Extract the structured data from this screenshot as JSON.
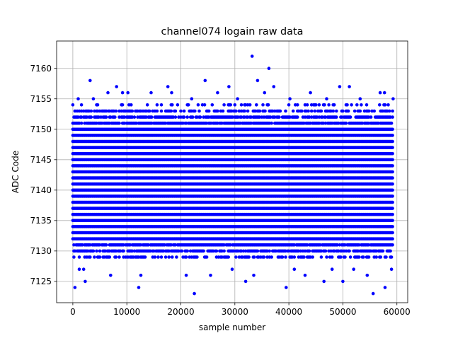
{
  "chart_data": {
    "type": "scatter",
    "title": "channel074 logain raw data",
    "xlabel": "sample number",
    "ylabel": "ADC Code",
    "xlim": [
      -3000,
      62000
    ],
    "ylim": [
      7121.5,
      7164.5
    ],
    "xticks": [
      0,
      10000,
      20000,
      30000,
      40000,
      50000,
      60000
    ],
    "xtick_labels": [
      "0",
      "10000",
      "20000",
      "30000",
      "40000",
      "50000",
      "60000"
    ],
    "yticks": [
      7125,
      7130,
      7135,
      7140,
      7145,
      7150,
      7155,
      7160
    ],
    "ytick_labels": [
      "7125",
      "7130",
      "7135",
      "7140",
      "7145",
      "7150",
      "7155",
      "7160"
    ],
    "grid": true,
    "marker_color": "#0000ff",
    "x_range": [
      0,
      59200
    ],
    "dense_bands": [
      {
        "y": 7129,
        "density": 0.45
      },
      {
        "y": 7130,
        "density": 0.75
      },
      {
        "y": 7131,
        "density": 0.9
      },
      {
        "y": 7132,
        "density": 1.0
      },
      {
        "y": 7133,
        "density": 1.0
      },
      {
        "y": 7134,
        "density": 1.0
      },
      {
        "y": 7135,
        "density": 1.0
      },
      {
        "y": 7136,
        "density": 1.0
      },
      {
        "y": 7137,
        "density": 1.0
      },
      {
        "y": 7138,
        "density": 1.0
      },
      {
        "y": 7139,
        "density": 1.0
      },
      {
        "y": 7140,
        "density": 1.0
      },
      {
        "y": 7141,
        "density": 1.0
      },
      {
        "y": 7142,
        "density": 1.0
      },
      {
        "y": 7143,
        "density": 1.0
      },
      {
        "y": 7144,
        "density": 1.0
      },
      {
        "y": 7145,
        "density": 1.0
      },
      {
        "y": 7146,
        "density": 1.0
      },
      {
        "y": 7147,
        "density": 1.0
      },
      {
        "y": 7148,
        "density": 1.0
      },
      {
        "y": 7149,
        "density": 1.0
      },
      {
        "y": 7150,
        "density": 1.0
      },
      {
        "y": 7151,
        "density": 0.9
      },
      {
        "y": 7152,
        "density": 0.75
      },
      {
        "y": 7153,
        "density": 0.45
      },
      {
        "y": 7154,
        "density": 0.2
      }
    ],
    "outliers": [
      {
        "x": 400,
        "y": 7124
      },
      {
        "x": 2300,
        "y": 7125
      },
      {
        "x": 12200,
        "y": 7124
      },
      {
        "x": 22500,
        "y": 7123
      },
      {
        "x": 32000,
        "y": 7125
      },
      {
        "x": 39500,
        "y": 7124
      },
      {
        "x": 46500,
        "y": 7125
      },
      {
        "x": 50000,
        "y": 7125
      },
      {
        "x": 55600,
        "y": 7123
      },
      {
        "x": 57800,
        "y": 7124
      },
      {
        "x": 1200,
        "y": 7127
      },
      {
        "x": 2000,
        "y": 7127
      },
      {
        "x": 7000,
        "y": 7126
      },
      {
        "x": 12600,
        "y": 7126
      },
      {
        "x": 21000,
        "y": 7126
      },
      {
        "x": 25500,
        "y": 7126
      },
      {
        "x": 29500,
        "y": 7127
      },
      {
        "x": 33500,
        "y": 7126
      },
      {
        "x": 41000,
        "y": 7127
      },
      {
        "x": 43000,
        "y": 7126
      },
      {
        "x": 48000,
        "y": 7127
      },
      {
        "x": 52000,
        "y": 7127
      },
      {
        "x": 54500,
        "y": 7126
      },
      {
        "x": 59000,
        "y": 7127
      },
      {
        "x": 3200,
        "y": 7158
      },
      {
        "x": 8100,
        "y": 7157
      },
      {
        "x": 17600,
        "y": 7157
      },
      {
        "x": 24500,
        "y": 7158
      },
      {
        "x": 28900,
        "y": 7157
      },
      {
        "x": 33200,
        "y": 7162
      },
      {
        "x": 34200,
        "y": 7158
      },
      {
        "x": 36300,
        "y": 7160
      },
      {
        "x": 37200,
        "y": 7157
      },
      {
        "x": 49400,
        "y": 7157
      },
      {
        "x": 51200,
        "y": 7157
      },
      {
        "x": 56900,
        "y": 7156
      },
      {
        "x": 1000,
        "y": 7155
      },
      {
        "x": 3800,
        "y": 7155
      },
      {
        "x": 6500,
        "y": 7156
      },
      {
        "x": 9200,
        "y": 7156
      },
      {
        "x": 10200,
        "y": 7156
      },
      {
        "x": 14500,
        "y": 7156
      },
      {
        "x": 18300,
        "y": 7156
      },
      {
        "x": 22000,
        "y": 7155
      },
      {
        "x": 26800,
        "y": 7156
      },
      {
        "x": 30500,
        "y": 7155
      },
      {
        "x": 35500,
        "y": 7156
      },
      {
        "x": 40200,
        "y": 7155
      },
      {
        "x": 44000,
        "y": 7156
      },
      {
        "x": 47000,
        "y": 7155
      },
      {
        "x": 53200,
        "y": 7155
      },
      {
        "x": 57700,
        "y": 7156
      },
      {
        "x": 59300,
        "y": 7155
      }
    ]
  }
}
